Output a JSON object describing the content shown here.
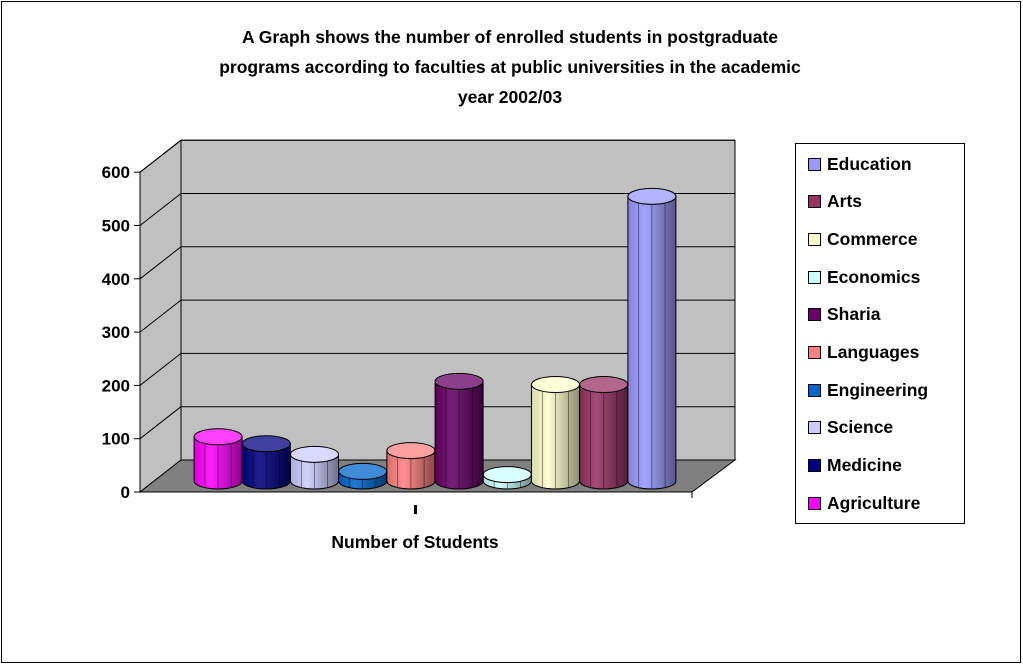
{
  "chart_data": {
    "type": "bar",
    "title": "A Graph shows the number of enrolled students in postgraduate programs according to faculties at public universities in the academic year 2002/03",
    "title_lines": [
      "A Graph shows the number of enrolled students in postgraduate",
      "programs according to faculties at public universities in the academic",
      "year 2002/03"
    ],
    "xlabel": "Number of Students",
    "ylabel": "",
    "ylim": [
      0,
      600
    ],
    "yticks": [
      "0",
      "100",
      "200",
      "300",
      "400",
      "500",
      "600"
    ],
    "grid": true,
    "legend_position": "right",
    "style": "3d-cylinder",
    "series": [
      {
        "name": "Agriculture",
        "value": 83,
        "color": "#ff00ff"
      },
      {
        "name": "Medicine",
        "value": 70,
        "color": "#000080"
      },
      {
        "name": "Science",
        "value": 50,
        "color": "#ccccff"
      },
      {
        "name": "Engineering",
        "value": 18,
        "color": "#0066cc"
      },
      {
        "name": "Languages",
        "value": 57,
        "color": "#ff8080"
      },
      {
        "name": "Sharia",
        "value": 187,
        "color": "#660066"
      },
      {
        "name": "Economics",
        "value": 12,
        "color": "#ccffff"
      },
      {
        "name": "Commerce",
        "value": 181,
        "color": "#ffffcc"
      },
      {
        "name": "Arts",
        "value": 181,
        "color": "#993366"
      },
      {
        "name": "Education",
        "value": 534,
        "color": "#9999ff"
      }
    ],
    "legend_order": [
      "Education",
      "Arts",
      "Commerce",
      "Economics",
      "Sharia",
      "Languages",
      "Engineering",
      "Science",
      "Medicine",
      "Agriculture"
    ]
  }
}
